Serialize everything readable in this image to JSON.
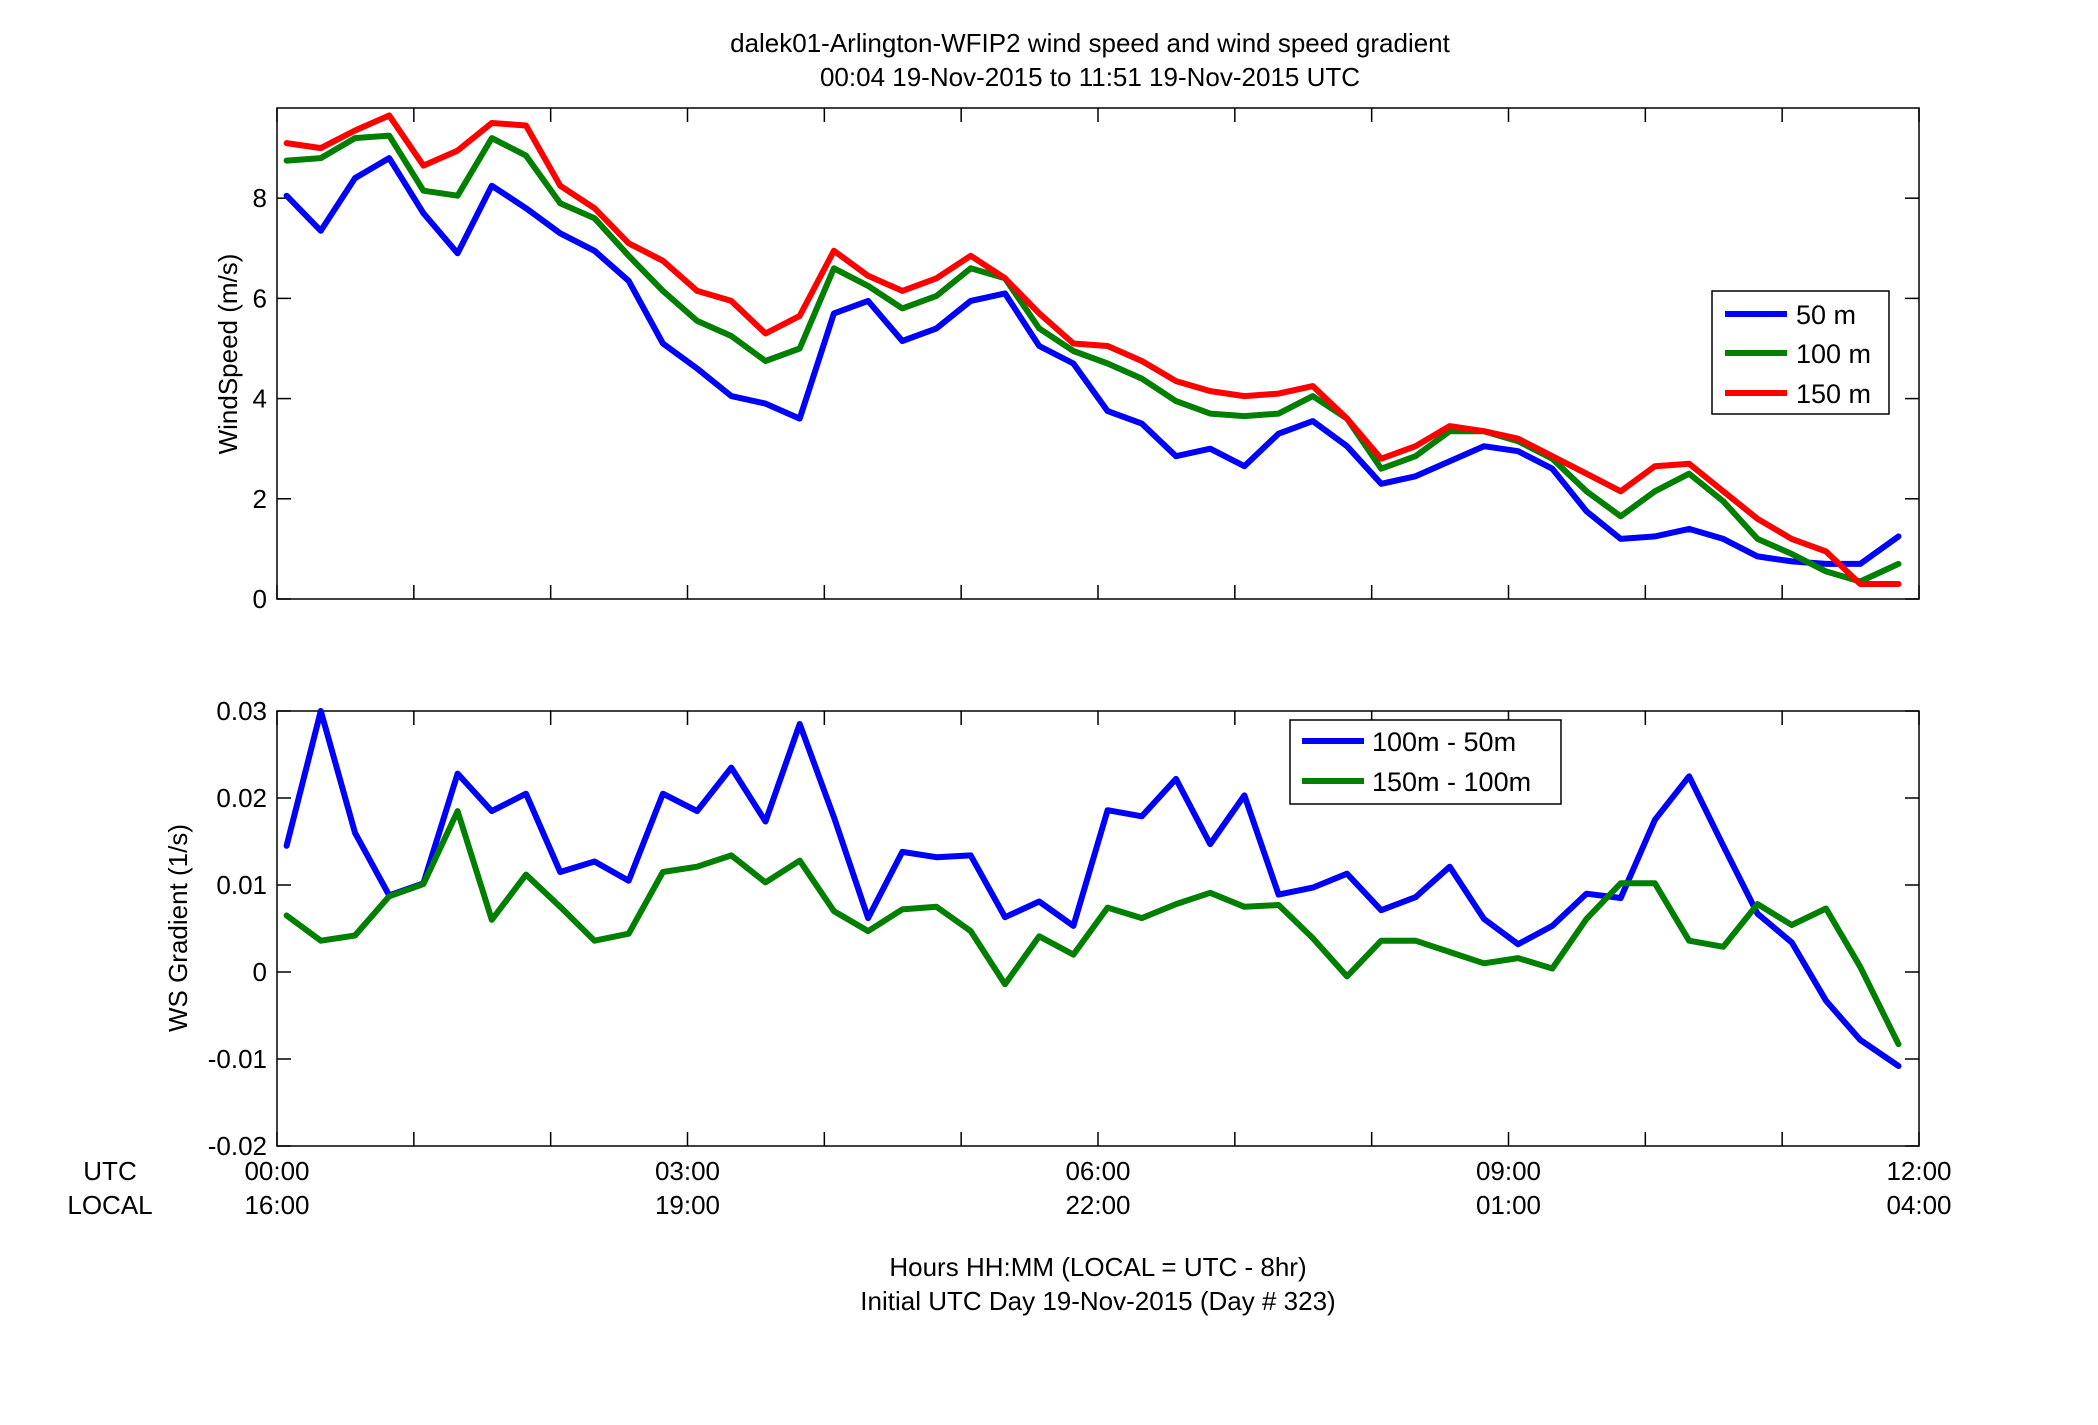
{
  "chart_data": [
    {
      "type": "line",
      "title": [
        "dalek01-Arlington-WFIP2  wind speed and wind speed gradient",
        "00:04 19-Nov-2015 to 11:51 19-Nov-2015  UTC"
      ],
      "ylabel": "WindSpeed (m/s)",
      "xlim": [
        0,
        12
      ],
      "ylim": [
        0,
        9.8
      ],
      "yticks": [
        0,
        2,
        4,
        6,
        8
      ],
      "ytick_labels": [
        "0",
        "2",
        "4",
        "6",
        "8"
      ],
      "legend_position": "right",
      "grid": false,
      "x": [
        0.07,
        0.32,
        0.57,
        0.82,
        1.07,
        1.32,
        1.57,
        1.82,
        2.07,
        2.32,
        2.57,
        2.82,
        3.07,
        3.32,
        3.57,
        3.82,
        4.07,
        4.32,
        4.57,
        4.82,
        5.07,
        5.32,
        5.57,
        5.82,
        6.07,
        6.32,
        6.57,
        6.82,
        7.07,
        7.32,
        7.57,
        7.82,
        8.07,
        8.32,
        8.57,
        8.82,
        9.07,
        9.32,
        9.57,
        9.82,
        10.07,
        10.32,
        10.57,
        10.82,
        11.07,
        11.32,
        11.57,
        11.85
      ],
      "series": [
        {
          "name": "50 m",
          "color": "#0000ff",
          "values": [
            8.05,
            7.35,
            8.4,
            8.8,
            7.7,
            6.9,
            8.25,
            7.8,
            7.3,
            6.95,
            6.35,
            5.1,
            4.6,
            4.05,
            3.9,
            3.6,
            5.7,
            5.95,
            5.15,
            5.4,
            5.95,
            6.1,
            5.05,
            4.7,
            3.75,
            3.5,
            2.85,
            3.0,
            2.65,
            3.3,
            3.55,
            3.05,
            2.3,
            2.45,
            2.75,
            3.05,
            2.95,
            2.6,
            1.75,
            1.2,
            1.25,
            1.4,
            1.2,
            0.85,
            0.75,
            0.7,
            0.7,
            1.25
          ]
        },
        {
          "name": "100 m",
          "color": "#007f00",
          "values": [
            8.75,
            8.8,
            9.2,
            9.25,
            8.15,
            8.05,
            9.2,
            8.85,
            7.9,
            7.6,
            6.85,
            6.15,
            5.55,
            5.25,
            4.75,
            5.0,
            6.6,
            6.25,
            5.8,
            6.05,
            6.6,
            6.4,
            5.4,
            4.95,
            4.7,
            4.4,
            3.95,
            3.7,
            3.65,
            3.7,
            4.05,
            3.6,
            2.6,
            2.85,
            3.35,
            3.35,
            3.15,
            2.8,
            2.15,
            1.65,
            2.15,
            2.5,
            1.95,
            1.2,
            0.9,
            0.55,
            0.35,
            0.7
          ]
        },
        {
          "name": "150 m",
          "color": "#ff0000",
          "values": [
            9.1,
            9.0,
            9.35,
            9.65,
            8.65,
            8.95,
            9.5,
            9.45,
            8.25,
            7.8,
            7.1,
            6.75,
            6.15,
            5.95,
            5.3,
            5.65,
            6.95,
            6.45,
            6.15,
            6.4,
            6.85,
            6.4,
            5.7,
            5.1,
            5.05,
            4.75,
            4.35,
            4.15,
            4.05,
            4.1,
            4.25,
            3.6,
            2.8,
            3.05,
            3.45,
            3.35,
            3.2,
            2.85,
            2.5,
            2.15,
            2.65,
            2.7,
            2.15,
            1.6,
            1.2,
            0.95,
            0.3,
            0.3
          ]
        }
      ]
    },
    {
      "type": "line",
      "ylabel": "WS Gradient (1/s)",
      "xlabel": [
        "Hours HH:MM  (LOCAL = UTC - 8hr)",
        "Initial UTC Day 19-Nov-2015 (Day # 323)"
      ],
      "xlim": [
        0,
        12
      ],
      "ylim": [
        -0.02,
        0.03
      ],
      "yticks": [
        -0.02,
        -0.01,
        0,
        0.01,
        0.02,
        0.03
      ],
      "ytick_labels": [
        "-0.02",
        "-0.01",
        "0",
        "0.01",
        "0.02",
        "0.03"
      ],
      "xticks": [
        0,
        3,
        6,
        9,
        12
      ],
      "xtick_labels_utc": [
        "00:00",
        "03:00",
        "06:00",
        "09:00",
        "12:00"
      ],
      "xtick_labels_local": [
        "16:00",
        "19:00",
        "22:00",
        "01:00",
        "04:00"
      ],
      "row_labels": [
        "UTC",
        "LOCAL"
      ],
      "legend_position": "top-right",
      "grid": false,
      "x": [
        0.07,
        0.32,
        0.57,
        0.82,
        1.07,
        1.32,
        1.57,
        1.82,
        2.07,
        2.32,
        2.57,
        2.82,
        3.07,
        3.32,
        3.57,
        3.82,
        4.07,
        4.32,
        4.57,
        4.82,
        5.07,
        5.32,
        5.57,
        5.82,
        6.07,
        6.32,
        6.57,
        6.82,
        7.07,
        7.32,
        7.57,
        7.82,
        8.07,
        8.32,
        8.57,
        8.82,
        9.07,
        9.32,
        9.57,
        9.82,
        10.07,
        10.32,
        10.57,
        10.82,
        11.07,
        11.32,
        11.57,
        11.85
      ],
      "series": [
        {
          "name": "100m - 50m",
          "color": "#0000ff",
          "values": [
            0.0145,
            0.03,
            0.016,
            0.0088,
            0.0102,
            0.0228,
            0.0185,
            0.0205,
            0.0115,
            0.0127,
            0.0105,
            0.0205,
            0.0185,
            0.0235,
            0.0173,
            0.0285,
            0.0178,
            0.0062,
            0.0138,
            0.0132,
            0.0134,
            0.0063,
            0.0081,
            0.0053,
            0.0186,
            0.0179,
            0.0222,
            0.0147,
            0.0203,
            0.0089,
            0.0097,
            0.0113,
            0.0071,
            0.0086,
            0.0121,
            0.0061,
            0.0032,
            0.0053,
            0.009,
            0.0085,
            0.0175,
            0.0225,
            0.0145,
            0.0067,
            0.0034,
            -0.0033,
            -0.0078,
            -0.0108
          ]
        },
        {
          "name": "150m - 100m",
          "color": "#007f00",
          "values": [
            0.0065,
            0.0036,
            0.0042,
            0.0087,
            0.0101,
            0.0185,
            0.006,
            0.0112,
            0.0075,
            0.0036,
            0.0044,
            0.0115,
            0.0121,
            0.0134,
            0.0103,
            0.0128,
            0.007,
            0.0047,
            0.0072,
            0.0075,
            0.0047,
            -0.0014,
            0.0041,
            0.002,
            0.0074,
            0.0062,
            0.0078,
            0.0091,
            0.0075,
            0.0077,
            0.0039,
            -0.0005,
            0.0036,
            0.0036,
            0.0023,
            0.001,
            0.0016,
            0.0004,
            0.0061,
            0.0102,
            0.0102,
            0.0036,
            0.0029,
            0.0078,
            0.0054,
            0.0073,
            0.0006,
            -0.0083
          ]
        }
      ]
    }
  ]
}
